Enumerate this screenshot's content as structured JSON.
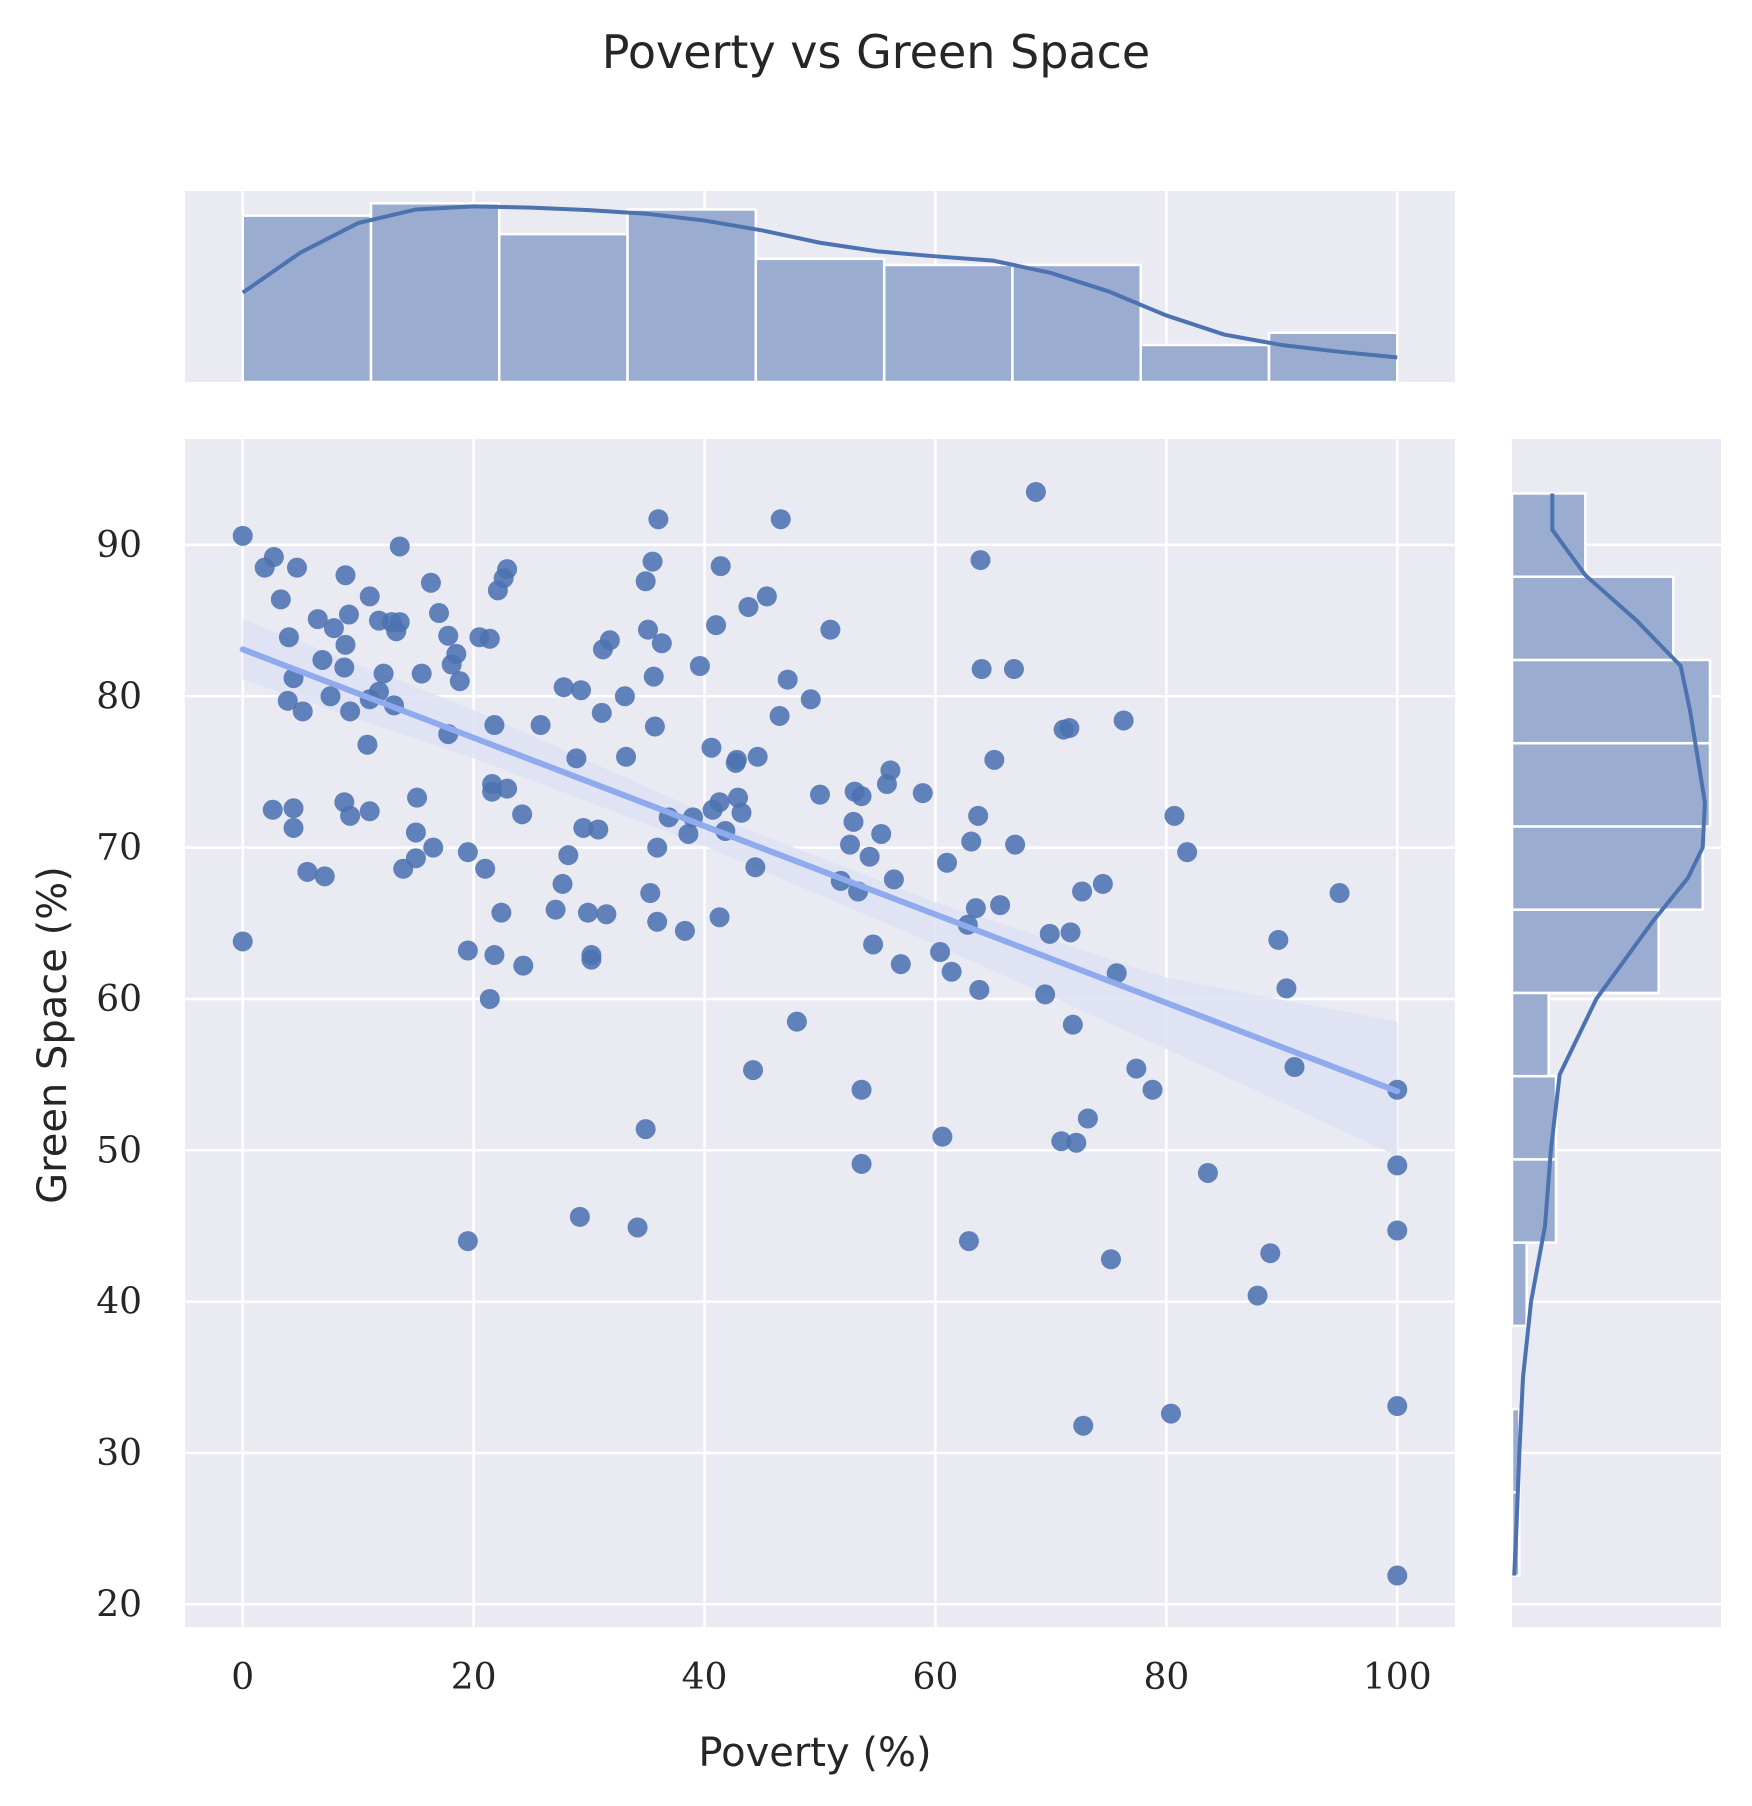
{
  "chart_data": {
    "type": "scatter",
    "title": "Poverty vs Green Space",
    "xlabel": "Poverty (%)",
    "ylabel": "Green Space (%)",
    "xlim": [
      -5,
      105
    ],
    "ylim": [
      18.5,
      97
    ],
    "xticks": [
      0,
      20,
      40,
      60,
      80,
      100
    ],
    "yticks": [
      20,
      30,
      40,
      50,
      60,
      70,
      80,
      90
    ],
    "grid": true,
    "colors": {
      "background": "#eaeaf2",
      "grid": "#ffffff",
      "points": "#4c72b0",
      "regression_line": "#8fabee",
      "confidence_band": "#dde2f4",
      "hist_fill": "#9aadd1",
      "kde_line": "#4c72b0"
    },
    "points": [
      [
        0.0,
        90.6
      ],
      [
        0.0,
        63.8
      ],
      [
        1.9,
        88.5
      ],
      [
        2.6,
        72.5
      ],
      [
        2.7,
        89.2
      ],
      [
        3.3,
        86.4
      ],
      [
        3.9,
        79.7
      ],
      [
        4.0,
        83.9
      ],
      [
        4.4,
        72.6
      ],
      [
        4.4,
        71.3
      ],
      [
        4.4,
        81.2
      ],
      [
        4.7,
        88.5
      ],
      [
        5.2,
        79.0
      ],
      [
        5.6,
        68.4
      ],
      [
        6.5,
        85.1
      ],
      [
        6.9,
        82.4
      ],
      [
        7.1,
        68.1
      ],
      [
        7.6,
        80.0
      ],
      [
        7.9,
        84.5
      ],
      [
        8.8,
        73.0
      ],
      [
        8.8,
        81.9
      ],
      [
        8.9,
        88.0
      ],
      [
        8.9,
        83.4
      ],
      [
        9.2,
        85.4
      ],
      [
        9.3,
        79.0
      ],
      [
        9.3,
        72.1
      ],
      [
        10.8,
        76.8
      ],
      [
        11.0,
        79.8
      ],
      [
        11.0,
        86.6
      ],
      [
        11.0,
        72.4
      ],
      [
        11.8,
        80.3
      ],
      [
        11.8,
        85.0
      ],
      [
        12.2,
        81.5
      ],
      [
        12.9,
        84.9
      ],
      [
        13.1,
        79.4
      ],
      [
        13.3,
        84.3
      ],
      [
        13.6,
        84.9
      ],
      [
        13.6,
        89.9
      ],
      [
        13.9,
        68.6
      ],
      [
        15.0,
        69.3
      ],
      [
        15.0,
        71.0
      ],
      [
        15.1,
        73.3
      ],
      [
        15.5,
        81.5
      ],
      [
        16.3,
        87.5
      ],
      [
        16.5,
        70.0
      ],
      [
        17.0,
        85.5
      ],
      [
        17.8,
        77.5
      ],
      [
        17.8,
        84.0
      ],
      [
        18.1,
        82.1
      ],
      [
        18.5,
        82.8
      ],
      [
        18.8,
        81.0
      ],
      [
        19.5,
        44.0
      ],
      [
        19.5,
        63.2
      ],
      [
        19.5,
        69.7
      ],
      [
        20.5,
        83.9
      ],
      [
        21.0,
        68.6
      ],
      [
        21.4,
        83.8
      ],
      [
        21.4,
        60.0
      ],
      [
        21.6,
        74.2
      ],
      [
        21.6,
        73.7
      ],
      [
        21.8,
        62.9
      ],
      [
        21.8,
        78.1
      ],
      [
        22.1,
        87.0
      ],
      [
        22.4,
        65.7
      ],
      [
        22.6,
        87.8
      ],
      [
        22.9,
        88.4
      ],
      [
        22.9,
        73.9
      ],
      [
        24.2,
        72.2
      ],
      [
        24.3,
        62.2
      ],
      [
        25.8,
        78.1
      ],
      [
        27.1,
        65.9
      ],
      [
        27.7,
        67.6
      ],
      [
        27.8,
        80.6
      ],
      [
        28.2,
        69.5
      ],
      [
        28.9,
        75.9
      ],
      [
        29.2,
        45.6
      ],
      [
        29.3,
        80.4
      ],
      [
        29.5,
        71.3
      ],
      [
        29.9,
        65.7
      ],
      [
        30.2,
        62.9
      ],
      [
        30.2,
        62.6
      ],
      [
        30.8,
        71.2
      ],
      [
        31.1,
        78.9
      ],
      [
        31.2,
        83.1
      ],
      [
        31.5,
        65.6
      ],
      [
        31.8,
        83.7
      ],
      [
        33.1,
        80.0
      ],
      [
        33.2,
        76.0
      ],
      [
        34.2,
        44.9
      ],
      [
        34.9,
        87.6
      ],
      [
        34.9,
        51.4
      ],
      [
        35.1,
        84.4
      ],
      [
        35.3,
        67.0
      ],
      [
        35.5,
        88.9
      ],
      [
        35.6,
        81.3
      ],
      [
        35.7,
        78.0
      ],
      [
        35.9,
        70.0
      ],
      [
        35.9,
        65.1
      ],
      [
        36.0,
        91.7
      ],
      [
        36.3,
        83.5
      ],
      [
        36.9,
        72.0
      ],
      [
        38.3,
        64.5
      ],
      [
        38.6,
        70.9
      ],
      [
        39.0,
        72.0
      ],
      [
        39.6,
        82.0
      ],
      [
        40.6,
        76.6
      ],
      [
        40.7,
        72.5
      ],
      [
        41.0,
        84.7
      ],
      [
        41.3,
        65.4
      ],
      [
        41.3,
        73.0
      ],
      [
        41.4,
        88.6
      ],
      [
        41.8,
        71.1
      ],
      [
        42.7,
        75.6
      ],
      [
        42.8,
        75.8
      ],
      [
        42.9,
        73.3
      ],
      [
        43.2,
        72.3
      ],
      [
        43.8,
        85.9
      ],
      [
        44.2,
        55.3
      ],
      [
        44.4,
        68.7
      ],
      [
        44.6,
        76.0
      ],
      [
        45.4,
        86.6
      ],
      [
        46.5,
        78.7
      ],
      [
        46.6,
        91.7
      ],
      [
        47.2,
        81.1
      ],
      [
        48.0,
        58.5
      ],
      [
        49.2,
        79.8
      ],
      [
        50.0,
        73.5
      ],
      [
        50.9,
        84.4
      ],
      [
        51.8,
        67.8
      ],
      [
        52.6,
        70.2
      ],
      [
        52.9,
        71.7
      ],
      [
        53.0,
        73.7
      ],
      [
        53.3,
        67.1
      ],
      [
        53.6,
        49.1
      ],
      [
        53.6,
        54.0
      ],
      [
        53.6,
        73.4
      ],
      [
        54.3,
        69.4
      ],
      [
        54.6,
        63.6
      ],
      [
        55.3,
        70.9
      ],
      [
        55.8,
        74.2
      ],
      [
        56.1,
        75.1
      ],
      [
        56.4,
        67.9
      ],
      [
        57.0,
        62.3
      ],
      [
        58.9,
        73.6
      ],
      [
        60.4,
        63.1
      ],
      [
        60.6,
        50.9
      ],
      [
        61.0,
        69.0
      ],
      [
        61.4,
        61.8
      ],
      [
        62.8,
        64.9
      ],
      [
        62.9,
        44.0
      ],
      [
        63.1,
        70.4
      ],
      [
        63.5,
        66.0
      ],
      [
        63.7,
        72.1
      ],
      [
        63.8,
        60.6
      ],
      [
        63.9,
        89.0
      ],
      [
        64.0,
        81.8
      ],
      [
        65.1,
        75.8
      ],
      [
        65.6,
        66.2
      ],
      [
        66.8,
        81.8
      ],
      [
        66.9,
        70.2
      ],
      [
        68.7,
        93.5
      ],
      [
        69.5,
        60.3
      ],
      [
        69.9,
        64.3
      ],
      [
        70.9,
        50.6
      ],
      [
        71.1,
        77.8
      ],
      [
        71.6,
        77.9
      ],
      [
        71.7,
        64.4
      ],
      [
        71.9,
        58.3
      ],
      [
        72.2,
        50.5
      ],
      [
        72.7,
        67.1
      ],
      [
        72.8,
        31.8
      ],
      [
        73.2,
        52.1
      ],
      [
        74.5,
        67.6
      ],
      [
        75.2,
        42.8
      ],
      [
        75.7,
        61.7
      ],
      [
        76.3,
        78.4
      ],
      [
        77.4,
        55.4
      ],
      [
        78.8,
        54.0
      ],
      [
        80.4,
        32.6
      ],
      [
        80.7,
        72.1
      ],
      [
        81.8,
        69.7
      ],
      [
        83.6,
        48.5
      ],
      [
        87.9,
        40.4
      ],
      [
        89.0,
        43.2
      ],
      [
        89.7,
        63.9
      ],
      [
        90.4,
        60.7
      ],
      [
        91.1,
        55.5
      ],
      [
        95.0,
        67.0
      ],
      [
        100.0,
        54.0
      ],
      [
        100.0,
        49.0
      ],
      [
        100.0,
        44.7
      ],
      [
        100.0,
        33.1
      ],
      [
        100.0,
        21.9
      ]
    ],
    "regression": {
      "x0": 0,
      "y0": 83.1,
      "x1": 100,
      "y1": 53.9
    },
    "confidence_band": {
      "x": [
        0,
        20,
        40,
        60,
        80,
        100
      ],
      "lower": [
        81.1,
        75.9,
        70.1,
        63.6,
        56.7,
        49.6
      ],
      "upper": [
        85.1,
        79.1,
        72.3,
        66.4,
        61.4,
        58.5
      ]
    },
    "marginal_x_hist": {
      "bin_edges": [
        0,
        11.11,
        22.22,
        33.33,
        44.44,
        55.56,
        66.67,
        77.78,
        88.89,
        100
      ],
      "counts": [
        27,
        29,
        24,
        28,
        20,
        19,
        19,
        6,
        8
      ],
      "kde": [
        [
          0,
          14.5
        ],
        [
          5,
          21.0
        ],
        [
          10,
          25.8
        ],
        [
          15,
          28.0
        ],
        [
          20,
          28.5
        ],
        [
          25,
          28.3
        ],
        [
          30,
          27.9
        ],
        [
          35,
          27.3
        ],
        [
          40,
          26.2
        ],
        [
          45,
          24.6
        ],
        [
          50,
          22.6
        ],
        [
          55,
          21.2
        ],
        [
          60,
          20.4
        ],
        [
          65,
          19.7
        ],
        [
          70,
          17.7
        ],
        [
          75,
          14.7
        ],
        [
          80,
          10.8
        ],
        [
          85,
          7.7
        ],
        [
          90,
          6.0
        ],
        [
          95,
          4.9
        ],
        [
          100,
          4.0
        ]
      ]
    },
    "marginal_y_hist": {
      "bin_edges": [
        21.9,
        27.4,
        32.9,
        38.4,
        43.9,
        49.4,
        54.9,
        60.4,
        65.9,
        71.4,
        76.9,
        82.4,
        87.9,
        93.4
      ],
      "counts": [
        1,
        1,
        0,
        2,
        6,
        6,
        5,
        20,
        26,
        27,
        27,
        22,
        10
      ],
      "kde": [
        [
          21.9,
          0.3
        ],
        [
          25,
          0.6
        ],
        [
          30,
          1.0
        ],
        [
          35,
          1.5
        ],
        [
          40,
          2.6
        ],
        [
          45,
          4.5
        ],
        [
          50,
          5.3
        ],
        [
          55,
          6.5
        ],
        [
          60,
          11.5
        ],
        [
          65,
          19.0
        ],
        [
          68,
          24.0
        ],
        [
          70,
          26.0
        ],
        [
          73,
          26.3
        ],
        [
          76,
          25.3
        ],
        [
          79,
          24.3
        ],
        [
          82,
          23.0
        ],
        [
          85,
          17.0
        ],
        [
          88,
          10.0
        ],
        [
          91,
          5.5
        ],
        [
          93.4,
          5.5
        ]
      ]
    }
  }
}
